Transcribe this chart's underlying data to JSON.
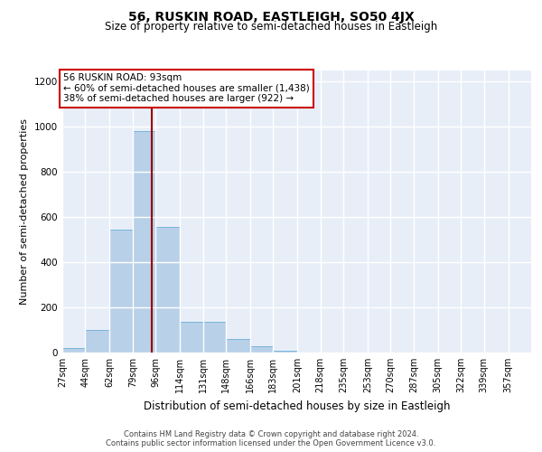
{
  "title": "56, RUSKIN ROAD, EASTLEIGH, SO50 4JX",
  "subtitle": "Size of property relative to semi-detached houses in Eastleigh",
  "xlabel": "Distribution of semi-detached houses by size in Eastleigh",
  "ylabel": "Number of semi-detached properties",
  "footer_line1": "Contains HM Land Registry data © Crown copyright and database right 2024.",
  "footer_line2": "Contains public sector information licensed under the Open Government Licence v3.0.",
  "bar_edges": [
    27,
    44,
    62,
    79,
    96,
    114,
    131,
    148,
    166,
    183,
    201,
    218,
    235,
    253,
    270,
    287,
    305,
    322,
    339,
    357,
    374
  ],
  "bar_values": [
    20,
    100,
    545,
    980,
    555,
    135,
    135,
    60,
    28,
    10,
    0,
    0,
    0,
    0,
    0,
    0,
    0,
    0,
    0,
    0
  ],
  "bar_color": "#b8d0e8",
  "bar_edge_color": "#6aaed6",
  "property_size": 93,
  "property_line_color": "#990000",
  "annotation_text": "56 RUSKIN ROAD: 93sqm\n← 60% of semi-detached houses are smaller (1,438)\n38% of semi-detached houses are larger (922) →",
  "annotation_box_facecolor": "#ffffff",
  "annotation_box_edgecolor": "#cc0000",
  "ylim": [
    0,
    1250
  ],
  "yticks": [
    0,
    200,
    400,
    600,
    800,
    1000,
    1200
  ],
  "background_color": "#e8eef8",
  "grid_color": "#ffffff",
  "title_fontsize": 10,
  "subtitle_fontsize": 8.5,
  "tick_label_fontsize": 7,
  "ylabel_fontsize": 8,
  "xlabel_fontsize": 8.5,
  "annotation_fontsize": 7.5,
  "footer_fontsize": 6
}
